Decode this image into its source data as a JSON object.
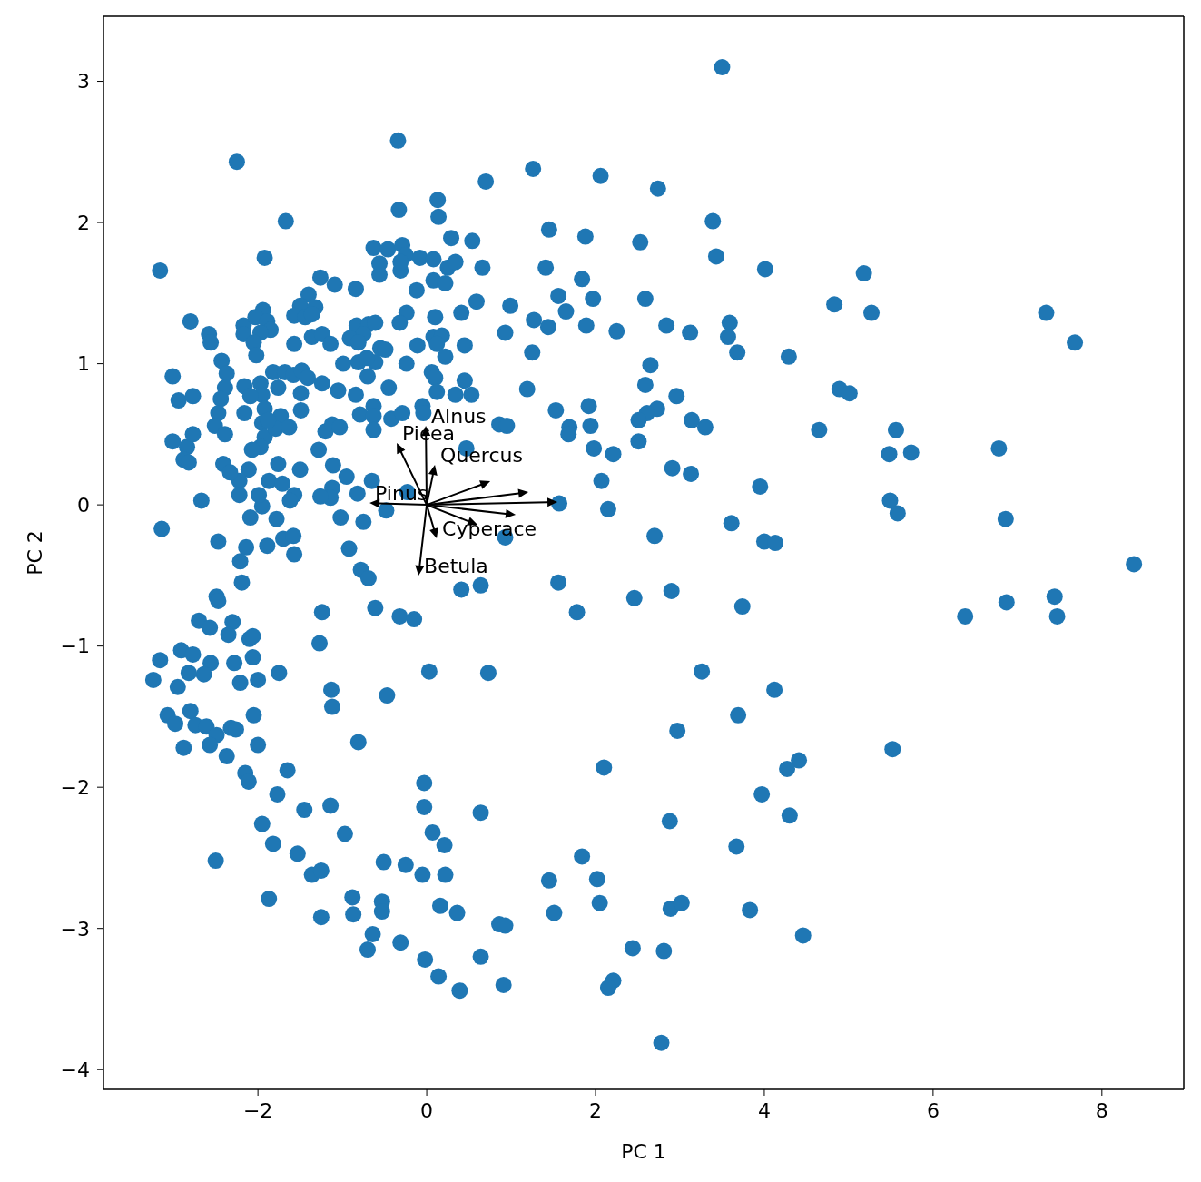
{
  "chart_data": {
    "type": "scatter",
    "xlabel": "PC 1",
    "ylabel": "PC 2",
    "marker": "circle",
    "xlim": [
      -3.83,
      8.97
    ],
    "ylim": [
      -4.14,
      3.46
    ],
    "xticks": [
      -2,
      0,
      2,
      4,
      6,
      8
    ],
    "yticks": [
      -4,
      -3,
      -2,
      -1,
      0,
      1,
      2,
      3
    ],
    "annotations": [
      "Alnus",
      "Picea",
      "Quercus",
      "Pinus",
      "Cyperace",
      "Betula"
    ],
    "series": [
      {
        "color": "#1f77b4",
        "x": [
          -0.34,
          -2.25,
          -1.67,
          -0.33,
          -1.92,
          -3.16,
          -0.63,
          -0.46,
          -0.29,
          -0.25,
          -0.08,
          -0.31,
          -0.56,
          -0.56,
          -0.31,
          -1.26,
          -1.09,
          -0.84,
          -0.12,
          -0.24,
          -0.32,
          -2.8,
          -2.58,
          -2.56,
          -2.17,
          -2.17,
          -1.94,
          -2.03,
          -1.89,
          -1.85,
          -1.97,
          -2.05,
          -2.02,
          -1.4,
          -1.5,
          -1.32,
          -1.57,
          -1.44,
          -1.36,
          -1.36,
          -1.24,
          -1.14,
          -1.57,
          -0.83,
          -0.69,
          -0.61,
          -0.75,
          -0.91,
          -0.81,
          -0.55,
          -0.49,
          -0.11,
          -0.24,
          -0.99,
          -0.81,
          -0.61,
          -0.71,
          -0.45,
          -0.7,
          -2.43,
          -2.37,
          -3.01,
          -2.94,
          -2.77,
          -2.39,
          -2.44,
          -2.47,
          -2.51,
          -2.39,
          -2.16,
          -1.97,
          -1.95,
          -2.09,
          -1.92,
          -1.95,
          -1.92,
          -1.97,
          -2.07,
          -2.16,
          -1.76,
          -1.82,
          -1.68,
          -1.58,
          -1.48,
          -1.41,
          -1.49,
          -1.49,
          -1.73,
          -1.79,
          -1.63,
          -1.88,
          -1.24,
          -1.05,
          -0.84,
          -0.79,
          -0.63,
          -0.63,
          -0.63,
          -0.42,
          -0.29,
          -0.05,
          -0.04,
          -1.2,
          -1.12,
          -1.03,
          -1.28,
          -1.11,
          -0.95,
          -0.65,
          -0.82,
          -1.12,
          -1.14,
          -1.26,
          -1.57,
          -1.62,
          -0.48,
          -0.23,
          -0.75,
          -1.02,
          -1.78,
          -2.09,
          -1.95,
          -1.99,
          -1.87,
          -1.71,
          -1.76,
          -1.5,
          -2.11,
          -2.22,
          -2.22,
          -2.41,
          -2.33,
          -3.01,
          -2.84,
          -2.77,
          -2.88,
          -2.82,
          -2.67,
          -3.14,
          -2.47,
          -2.14,
          -1.89,
          -1.7,
          -1.58,
          -1.57,
          -0.92,
          -2.21,
          -2.19,
          -0.78,
          -0.69,
          -2.49,
          -2.47,
          -1.24,
          -0.61,
          -0.32,
          -0.15,
          -2.7,
          -2.57,
          -2.3,
          -2.35,
          -2.1,
          -2.06,
          -1.27,
          -3.16,
          -2.91,
          -2.77,
          -2.56,
          -2.64,
          -2.82,
          -2.28,
          -2.06,
          -3.24,
          -2.95,
          -2.21,
          -2.0,
          -1.75,
          -1.13,
          -1.12,
          -0.47,
          0.03,
          -3.07,
          -2.98,
          -2.8,
          -2.74,
          -2.61,
          -2.49,
          -2.57,
          -2.32,
          -2.26,
          -2.88,
          -2.37,
          -2.05,
          -2.0,
          -0.81,
          -2.15,
          -2.11,
          -1.65,
          -1.77,
          -1.45,
          -1.14,
          -1.95,
          -1.82,
          -1.53,
          -0.97,
          -2.5,
          -1.36,
          -1.25,
          -0.51,
          -0.25,
          -0.05,
          -0.03,
          -0.03,
          0.07,
          -1.87,
          -0.88,
          -0.87,
          -0.53,
          -0.53,
          -1.25,
          -0.64,
          -0.7,
          -0.31,
          -0.02,
          3.5,
          1.26,
          0.7,
          2.06,
          2.74,
          0.13,
          0.14,
          3.39,
          0.29,
          0.54,
          1.45,
          1.88,
          2.53,
          3.43,
          4.01,
          0.08,
          0.25,
          0.34,
          0.66,
          1.41,
          1.84,
          0.08,
          0.22,
          0.59,
          0.41,
          0.99,
          1.56,
          1.97,
          2.59,
          1.65,
          1.27,
          1.44,
          1.89,
          2.25,
          2.84,
          3.12,
          3.59,
          3.57,
          3.68,
          4.29,
          0.93,
          0.1,
          0.08,
          0.18,
          0.12,
          0.22,
          0.45,
          1.25,
          2.65,
          2.59,
          2.96,
          0.06,
          0.1,
          0.45,
          0.12,
          0.34,
          0.53,
          1.19,
          1.53,
          1.92,
          2.73,
          2.61,
          2.51,
          3.14,
          3.3,
          4.65,
          0.86,
          0.95,
          1.69,
          1.68,
          1.94,
          2.51,
          1.98,
          2.21,
          2.91,
          3.13,
          3.95,
          2.07,
          1.57,
          2.15,
          3.61,
          2.7,
          4.0,
          4.13,
          0.93,
          0.47,
          0.41,
          0.64,
          1.56,
          1.78,
          2.46,
          2.9,
          3.74,
          0.73,
          3.26,
          4.12,
          3.69,
          2.97,
          2.1,
          4.41,
          4.27,
          3.97,
          4.3,
          2.88,
          3.67,
          0.64,
          0.21,
          0.22,
          1.84,
          1.45,
          2.02,
          0.16,
          0.36,
          0.86,
          0.93,
          1.51,
          2.05,
          2.89,
          3.02,
          3.83,
          4.46,
          0.14,
          0.39,
          0.64,
          0.91,
          2.44,
          2.81,
          2.21,
          2.15,
          2.78,
          5.18,
          4.83,
          5.27,
          7.34,
          7.68,
          4.89,
          5.01,
          5.56,
          5.48,
          5.74,
          6.78,
          5.49,
          5.58,
          6.86,
          8.38,
          6.38,
          6.87,
          7.44,
          7.47,
          5.52
        ],
        "values": [
          2.58,
          2.43,
          2.01,
          2.09,
          1.75,
          1.66,
          1.82,
          1.81,
          1.84,
          1.77,
          1.75,
          1.66,
          1.63,
          1.71,
          1.72,
          1.61,
          1.56,
          1.53,
          1.52,
          1.36,
          1.29,
          1.3,
          1.21,
          1.15,
          1.27,
          1.21,
          1.38,
          1.33,
          1.3,
          1.24,
          1.22,
          1.15,
          1.06,
          1.49,
          1.41,
          1.4,
          1.34,
          1.33,
          1.35,
          1.19,
          1.21,
          1.14,
          1.14,
          1.27,
          1.28,
          1.29,
          1.21,
          1.18,
          1.15,
          1.11,
          1.1,
          1.13,
          1.0,
          1.0,
          1.01,
          1.01,
          1.04,
          0.83,
          0.91,
          1.02,
          0.93,
          0.91,
          0.74,
          0.77,
          0.83,
          0.75,
          0.65,
          0.56,
          0.5,
          0.84,
          0.86,
          0.78,
          0.77,
          0.68,
          0.58,
          0.48,
          0.41,
          0.39,
          0.65,
          0.83,
          0.94,
          0.94,
          0.92,
          0.95,
          0.9,
          0.79,
          0.67,
          0.63,
          0.54,
          0.55,
          0.6,
          0.86,
          0.81,
          0.78,
          0.64,
          0.7,
          0.63,
          0.53,
          0.61,
          0.65,
          0.7,
          0.65,
          0.52,
          0.57,
          0.55,
          0.39,
          0.28,
          0.2,
          0.17,
          0.08,
          0.12,
          0.05,
          0.06,
          0.07,
          0.03,
          -0.04,
          0.09,
          -0.12,
          -0.09,
          -0.1,
          -0.09,
          -0.01,
          0.07,
          0.17,
          0.15,
          0.29,
          0.25,
          0.25,
          0.17,
          0.07,
          0.29,
          0.23,
          0.45,
          0.41,
          0.5,
          0.32,
          0.3,
          0.03,
          -0.17,
          -0.26,
          -0.3,
          -0.29,
          -0.24,
          -0.22,
          -0.35,
          -0.31,
          -0.4,
          -0.55,
          -0.46,
          -0.52,
          -0.65,
          -0.68,
          -0.76,
          -0.73,
          -0.79,
          -0.81,
          -0.82,
          -0.87,
          -0.83,
          -0.92,
          -0.95,
          -0.93,
          -0.98,
          -1.1,
          -1.03,
          -1.06,
          -1.12,
          -1.2,
          -1.19,
          -1.12,
          -1.08,
          -1.24,
          -1.29,
          -1.26,
          -1.24,
          -1.19,
          -1.31,
          -1.43,
          -1.35,
          -1.18,
          -1.49,
          -1.55,
          -1.46,
          -1.56,
          -1.57,
          -1.63,
          -1.7,
          -1.58,
          -1.59,
          -1.72,
          -1.78,
          -1.49,
          -1.7,
          -1.68,
          -1.9,
          -1.96,
          -1.88,
          -2.05,
          -2.16,
          -2.13,
          -2.26,
          -2.4,
          -2.47,
          -2.33,
          -2.52,
          -2.62,
          -2.59,
          -2.53,
          -2.55,
          -2.62,
          -1.97,
          -2.14,
          -2.32,
          -2.79,
          -2.78,
          -2.9,
          -2.81,
          -2.88,
          -2.92,
          -3.04,
          -3.15,
          -3.1,
          -3.22,
          3.1,
          2.38,
          2.29,
          2.33,
          2.24,
          2.16,
          2.04,
          2.01,
          1.89,
          1.87,
          1.95,
          1.9,
          1.86,
          1.76,
          1.67,
          1.74,
          1.68,
          1.72,
          1.68,
          1.68,
          1.6,
          1.59,
          1.57,
          1.44,
          1.36,
          1.41,
          1.48,
          1.46,
          1.46,
          1.37,
          1.31,
          1.26,
          1.27,
          1.23,
          1.27,
          1.22,
          1.29,
          1.19,
          1.08,
          1.05,
          1.22,
          1.33,
          1.19,
          1.2,
          1.14,
          1.05,
          1.13,
          1.08,
          0.99,
          0.85,
          0.77,
          0.94,
          0.9,
          0.88,
          0.8,
          0.78,
          0.78,
          0.82,
          0.67,
          0.7,
          0.68,
          0.65,
          0.6,
          0.6,
          0.55,
          0.53,
          0.57,
          0.56,
          0.55,
          0.5,
          0.56,
          0.45,
          0.4,
          0.36,
          0.26,
          0.22,
          0.13,
          0.17,
          0.01,
          -0.03,
          -0.13,
          -0.22,
          -0.26,
          -0.27,
          -0.23,
          0.4,
          -0.6,
          -0.57,
          -0.55,
          -0.76,
          -0.66,
          -0.61,
          -0.72,
          -1.19,
          -1.18,
          -1.31,
          -1.49,
          -1.6,
          -1.86,
          -1.81,
          -1.87,
          -2.05,
          -2.2,
          -2.24,
          -2.42,
          -2.18,
          -2.41,
          -2.62,
          -2.49,
          -2.66,
          -2.65,
          -2.84,
          -2.89,
          -2.97,
          -2.98,
          -2.89,
          -2.82,
          -2.86,
          -2.82,
          -2.87,
          -3.05,
          -3.34,
          -3.44,
          -3.2,
          -3.4,
          -3.14,
          -3.16,
          -3.37,
          -3.42,
          -3.81,
          1.64,
          1.42,
          1.36,
          1.36,
          1.15,
          0.82,
          0.79,
          0.53,
          0.36,
          0.37,
          0.4,
          0.03,
          -0.06,
          -0.1,
          -0.42,
          -0.79,
          -0.69,
          -0.65,
          -0.79,
          -1.73
        ]
      }
    ]
  }
}
